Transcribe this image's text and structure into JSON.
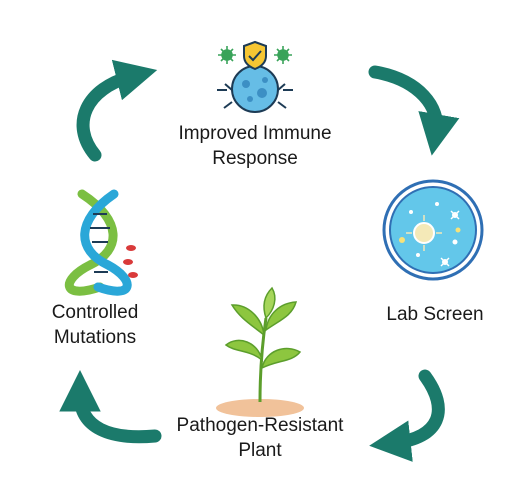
{
  "nodes": [
    {
      "id": "immune",
      "lines": [
        "Improved Immune",
        "Response"
      ],
      "icon": "virus-shield-icon"
    },
    {
      "id": "lab",
      "lines": [
        "Lab Screen"
      ],
      "icon": "petri-dish-icon"
    },
    {
      "id": "plant",
      "lines": [
        "Pathogen-Resistant",
        "Plant"
      ],
      "icon": "plant-sprout-icon"
    },
    {
      "id": "mutation",
      "lines": [
        "Controlled",
        "Mutations"
      ],
      "icon": "dna-helix-icon"
    }
  ],
  "colors": {
    "arrow": "#1b7a6b",
    "dish_ring": "#2f6fb4",
    "dish_fill": "#63c7ea",
    "virus_body": "#66bde6",
    "shield": "#f6c633",
    "germ": "#3aa35a",
    "leaf": "#8dc63f",
    "leaf_dark": "#5c9e2c",
    "soil": "#f1c29a",
    "dna_green": "#7bbf42",
    "dna_blue": "#2aa7d8",
    "dna_red": "#d93a3a",
    "text": "#1a1a1a"
  }
}
